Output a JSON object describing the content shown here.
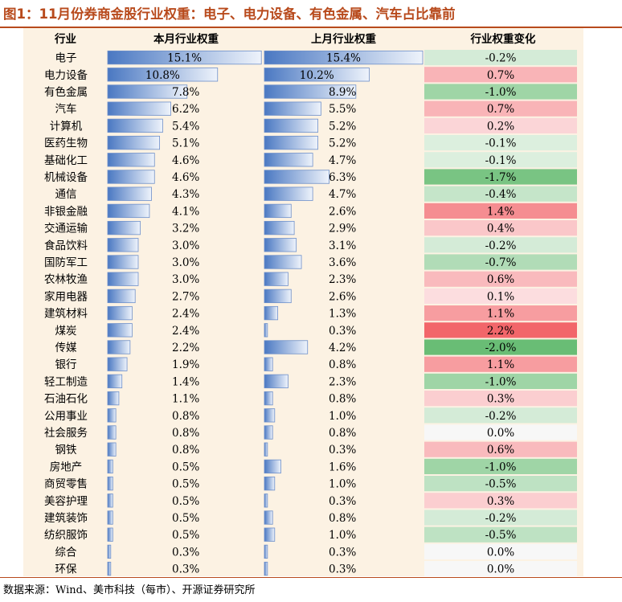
{
  "title": "图1：11月份券商金股行业权重：电子、电力设备、有色金属、汽车占比靠前",
  "source": "数据来源：Wind、美市科技（每市）、开源证券研究所",
  "colors": {
    "bar_dark": "#4a78c2",
    "bar_light": "#eef3fb",
    "bar_border": "#6d8fca",
    "panel_bg": "#fcf2e3",
    "title": "#b84a1c",
    "pos_max": "#f2666a",
    "neg_max": "#5fb96c",
    "zero": "#f7f7f7"
  },
  "chart_data": {
    "type": "table",
    "columns": [
      "行业",
      "本月行业权重",
      "上月行业权重",
      "行业权重变化"
    ],
    "rows": [
      {
        "industry": "电子",
        "current": 15.1,
        "previous": 15.4,
        "change": -0.2,
        "current_label": "15.1%",
        "previous_label": "15.4%",
        "change_label": "-0.2%"
      },
      {
        "industry": "电力设备",
        "current": 10.8,
        "previous": 10.2,
        "change": 0.7,
        "current_label": "10.8%",
        "previous_label": "10.2%",
        "change_label": "0.7%"
      },
      {
        "industry": "有色金属",
        "current": 7.8,
        "previous": 8.9,
        "change": -1.0,
        "current_label": "7.8%",
        "previous_label": "8.9%",
        "change_label": "-1.0%"
      },
      {
        "industry": "汽车",
        "current": 6.2,
        "previous": 5.5,
        "change": 0.7,
        "current_label": "6.2%",
        "previous_label": "5.5%",
        "change_label": "0.7%"
      },
      {
        "industry": "计算机",
        "current": 5.4,
        "previous": 5.2,
        "change": 0.2,
        "current_label": "5.4%",
        "previous_label": "5.2%",
        "change_label": "0.2%"
      },
      {
        "industry": "医药生物",
        "current": 5.1,
        "previous": 5.2,
        "change": -0.1,
        "current_label": "5.1%",
        "previous_label": "5.2%",
        "change_label": "-0.1%"
      },
      {
        "industry": "基础化工",
        "current": 4.6,
        "previous": 4.7,
        "change": -0.1,
        "current_label": "4.6%",
        "previous_label": "4.7%",
        "change_label": "-0.1%"
      },
      {
        "industry": "机械设备",
        "current": 4.6,
        "previous": 6.3,
        "change": -1.7,
        "current_label": "4.6%",
        "previous_label": "6.3%",
        "change_label": "-1.7%"
      },
      {
        "industry": "通信",
        "current": 4.3,
        "previous": 4.7,
        "change": -0.4,
        "current_label": "4.3%",
        "previous_label": "4.7%",
        "change_label": "-0.4%"
      },
      {
        "industry": "非银金融",
        "current": 4.1,
        "previous": 2.6,
        "change": 1.4,
        "current_label": "4.1%",
        "previous_label": "2.6%",
        "change_label": "1.4%"
      },
      {
        "industry": "交通运输",
        "current": 3.2,
        "previous": 2.9,
        "change": 0.4,
        "current_label": "3.2%",
        "previous_label": "2.9%",
        "change_label": "0.4%"
      },
      {
        "industry": "食品饮料",
        "current": 3.0,
        "previous": 3.1,
        "change": -0.2,
        "current_label": "3.0%",
        "previous_label": "3.1%",
        "change_label": "-0.2%"
      },
      {
        "industry": "国防军工",
        "current": 3.0,
        "previous": 3.6,
        "change": -0.7,
        "current_label": "3.0%",
        "previous_label": "3.6%",
        "change_label": "-0.7%"
      },
      {
        "industry": "农林牧渔",
        "current": 3.0,
        "previous": 2.3,
        "change": 0.6,
        "current_label": "3.0%",
        "previous_label": "2.3%",
        "change_label": "0.6%"
      },
      {
        "industry": "家用电器",
        "current": 2.7,
        "previous": 2.6,
        "change": 0.1,
        "current_label": "2.7%",
        "previous_label": "2.6%",
        "change_label": "0.1%"
      },
      {
        "industry": "建筑材料",
        "current": 2.4,
        "previous": 1.3,
        "change": 1.1,
        "current_label": "2.4%",
        "previous_label": "1.3%",
        "change_label": "1.1%"
      },
      {
        "industry": "煤炭",
        "current": 2.4,
        "previous": 0.3,
        "change": 2.2,
        "current_label": "2.4%",
        "previous_label": "0.3%",
        "change_label": "2.2%"
      },
      {
        "industry": "传媒",
        "current": 2.2,
        "previous": 4.2,
        "change": -2.0,
        "current_label": "2.2%",
        "previous_label": "4.2%",
        "change_label": "-2.0%"
      },
      {
        "industry": "银行",
        "current": 1.9,
        "previous": 0.8,
        "change": 1.1,
        "current_label": "1.9%",
        "previous_label": "0.8%",
        "change_label": "1.1%"
      },
      {
        "industry": "轻工制造",
        "current": 1.4,
        "previous": 2.3,
        "change": -1.0,
        "current_label": "1.4%",
        "previous_label": "2.3%",
        "change_label": "-1.0%"
      },
      {
        "industry": "石油石化",
        "current": 1.1,
        "previous": 0.8,
        "change": 0.3,
        "current_label": "1.1%",
        "previous_label": "0.8%",
        "change_label": "0.3%"
      },
      {
        "industry": "公用事业",
        "current": 0.8,
        "previous": 1.0,
        "change": -0.2,
        "current_label": "0.8%",
        "previous_label": "1.0%",
        "change_label": "-0.2%"
      },
      {
        "industry": "社会服务",
        "current": 0.8,
        "previous": 0.8,
        "change": 0.0,
        "current_label": "0.8%",
        "previous_label": "0.8%",
        "change_label": "0.0%"
      },
      {
        "industry": "钢铁",
        "current": 0.8,
        "previous": 0.3,
        "change": 0.6,
        "current_label": "0.8%",
        "previous_label": "0.3%",
        "change_label": "0.6%"
      },
      {
        "industry": "房地产",
        "current": 0.5,
        "previous": 1.6,
        "change": -1.0,
        "current_label": "0.5%",
        "previous_label": "1.6%",
        "change_label": "-1.0%"
      },
      {
        "industry": "商贸零售",
        "current": 0.5,
        "previous": 1.0,
        "change": -0.5,
        "current_label": "0.5%",
        "previous_label": "1.0%",
        "change_label": "-0.5%"
      },
      {
        "industry": "美容护理",
        "current": 0.5,
        "previous": 0.3,
        "change": 0.3,
        "current_label": "0.5%",
        "previous_label": "0.3%",
        "change_label": "0.3%"
      },
      {
        "industry": "建筑装饰",
        "current": 0.5,
        "previous": 0.8,
        "change": -0.2,
        "current_label": "0.5%",
        "previous_label": "0.8%",
        "change_label": "-0.2%"
      },
      {
        "industry": "纺织服饰",
        "current": 0.5,
        "previous": 1.0,
        "change": -0.5,
        "current_label": "0.5%",
        "previous_label": "1.0%",
        "change_label": "-0.5%"
      },
      {
        "industry": "综合",
        "current": 0.3,
        "previous": 0.3,
        "change": 0.0,
        "current_label": "0.3%",
        "previous_label": "0.3%",
        "change_label": "0.0%"
      },
      {
        "industry": "环保",
        "current": 0.3,
        "previous": 0.3,
        "change": 0.0,
        "current_label": "0.3%",
        "previous_label": "0.3%",
        "change_label": "0.0%"
      }
    ]
  }
}
